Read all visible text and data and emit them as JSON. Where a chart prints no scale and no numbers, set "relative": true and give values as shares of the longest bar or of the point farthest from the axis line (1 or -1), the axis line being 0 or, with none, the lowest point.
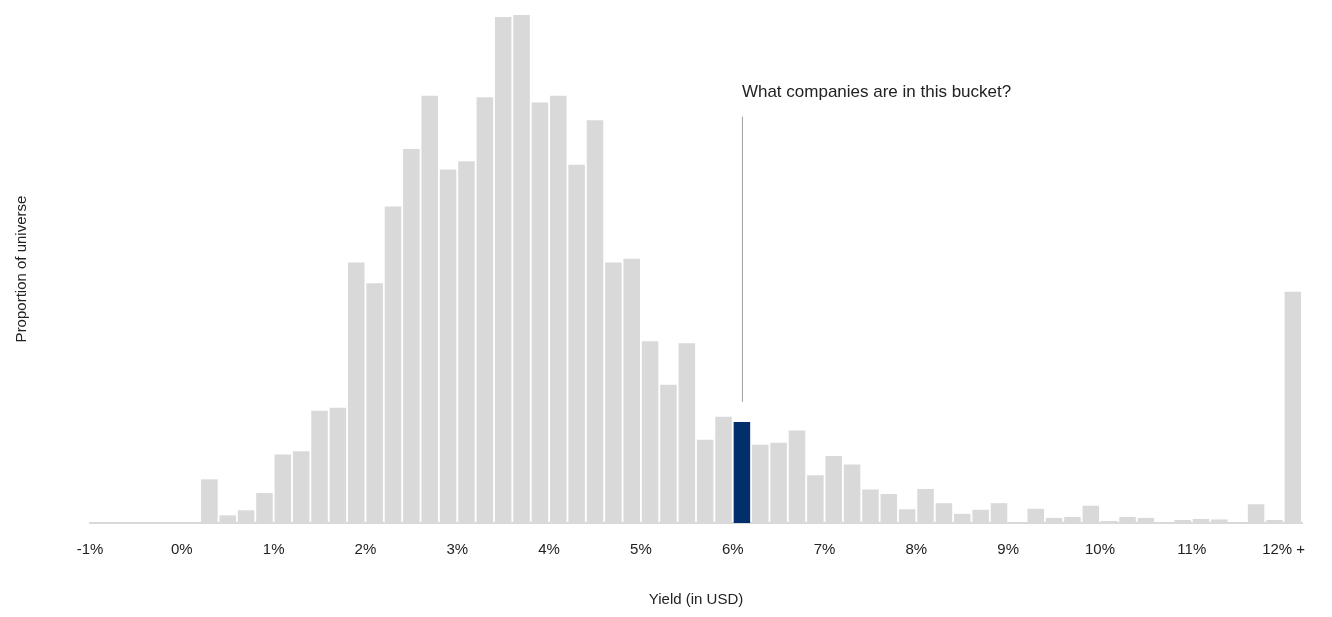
{
  "chart_data": {
    "type": "bar",
    "xlabel": "Yield (in USD)",
    "ylabel": "Proportion of universe",
    "relative": true,
    "x": [
      -0.9,
      -0.7,
      -0.5,
      -0.3,
      -0.1,
      0.1,
      0.3,
      0.5,
      0.7,
      0.9,
      1.1,
      1.3,
      1.5,
      1.7,
      1.9,
      2.1,
      2.3,
      2.5,
      2.7,
      2.9,
      3.1,
      3.3,
      3.5,
      3.7,
      3.9,
      4.1,
      4.3,
      4.5,
      4.7,
      4.9,
      5.1,
      5.3,
      5.5,
      5.7,
      5.9,
      6.1,
      6.3,
      6.5,
      6.7,
      6.9,
      7.1,
      7.3,
      7.5,
      7.7,
      7.9,
      8.1,
      8.3,
      8.5,
      8.7,
      8.9,
      9.1,
      9.3,
      9.5,
      9.7,
      9.9,
      10.1,
      10.3,
      10.5,
      10.7,
      10.9,
      11.1,
      11.3,
      11.5,
      11.7,
      11.9,
      12.1
    ],
    "values": [
      0,
      0,
      0,
      0,
      0,
      0,
      0.086,
      0.015,
      0.025,
      0.059,
      0.135,
      0.141,
      0.221,
      0.227,
      0.513,
      0.472,
      0.623,
      0.736,
      0.841,
      0.696,
      0.712,
      0.838,
      0.996,
      1,
      0.828,
      0.841,
      0.705,
      0.793,
      0.513,
      0.52,
      0.358,
      0.272,
      0.354,
      0.164,
      0.209,
      0.199,
      0.154,
      0.158,
      0.182,
      0.094,
      0.132,
      0.115,
      0.066,
      0.057,
      0.027,
      0.067,
      0.039,
      0.018,
      0.026,
      0.039,
      0,
      0.028,
      0.01,
      0.012,
      0.034,
      0.004,
      0.012,
      0.01,
      0,
      0.006,
      0.008,
      0.007,
      0,
      0.037,
      0.006,
      0.455
    ],
    "colors": [
      "#d9d9d9",
      "#d9d9d9",
      "#d9d9d9",
      "#d9d9d9",
      "#d9d9d9",
      "#d9d9d9",
      "#d9d9d9",
      "#d9d9d9",
      "#d9d9d9",
      "#d9d9d9",
      "#d9d9d9",
      "#d9d9d9",
      "#d9d9d9",
      "#d9d9d9",
      "#d9d9d9",
      "#d9d9d9",
      "#d9d9d9",
      "#d9d9d9",
      "#d9d9d9",
      "#d9d9d9",
      "#d9d9d9",
      "#d9d9d9",
      "#d9d9d9",
      "#d9d9d9",
      "#d9d9d9",
      "#d9d9d9",
      "#d9d9d9",
      "#d9d9d9",
      "#d9d9d9",
      "#d9d9d9",
      "#d9d9d9",
      "#d9d9d9",
      "#d9d9d9",
      "#d9d9d9",
      "#d9d9d9",
      "#002f6c",
      "#d9d9d9",
      "#d9d9d9",
      "#d9d9d9",
      "#d9d9d9",
      "#d9d9d9",
      "#d9d9d9",
      "#d9d9d9",
      "#d9d9d9",
      "#d9d9d9",
      "#d9d9d9",
      "#d9d9d9",
      "#d9d9d9",
      "#d9d9d9",
      "#d9d9d9",
      "#d9d9d9",
      "#d9d9d9",
      "#d9d9d9",
      "#d9d9d9",
      "#d9d9d9",
      "#d9d9d9",
      "#d9d9d9",
      "#d9d9d9",
      "#d9d9d9",
      "#d9d9d9",
      "#d9d9d9",
      "#d9d9d9",
      "#d9d9d9",
      "#d9d9d9",
      "#d9d9d9",
      "#d9d9d9"
    ],
    "xlim": [
      -1,
      12.2
    ],
    "xticks": [
      {
        "value": -1,
        "label": "-1%"
      },
      {
        "value": 0,
        "label": "0%"
      },
      {
        "value": 1,
        "label": "1%"
      },
      {
        "value": 2,
        "label": "2%"
      },
      {
        "value": 3,
        "label": "3%"
      },
      {
        "value": 4,
        "label": "4%"
      },
      {
        "value": 5,
        "label": "5%"
      },
      {
        "value": 6,
        "label": "6%"
      },
      {
        "value": 7,
        "label": "7%"
      },
      {
        "value": 8,
        "label": "8%"
      },
      {
        "value": 9,
        "label": "9%"
      },
      {
        "value": 10,
        "label": "10%"
      },
      {
        "value": 11,
        "label": "11%"
      },
      {
        "value": 12,
        "label": "12% +"
      }
    ],
    "annotations": [
      "What companies are in this bucket?"
    ],
    "grid": false,
    "legend": false
  }
}
